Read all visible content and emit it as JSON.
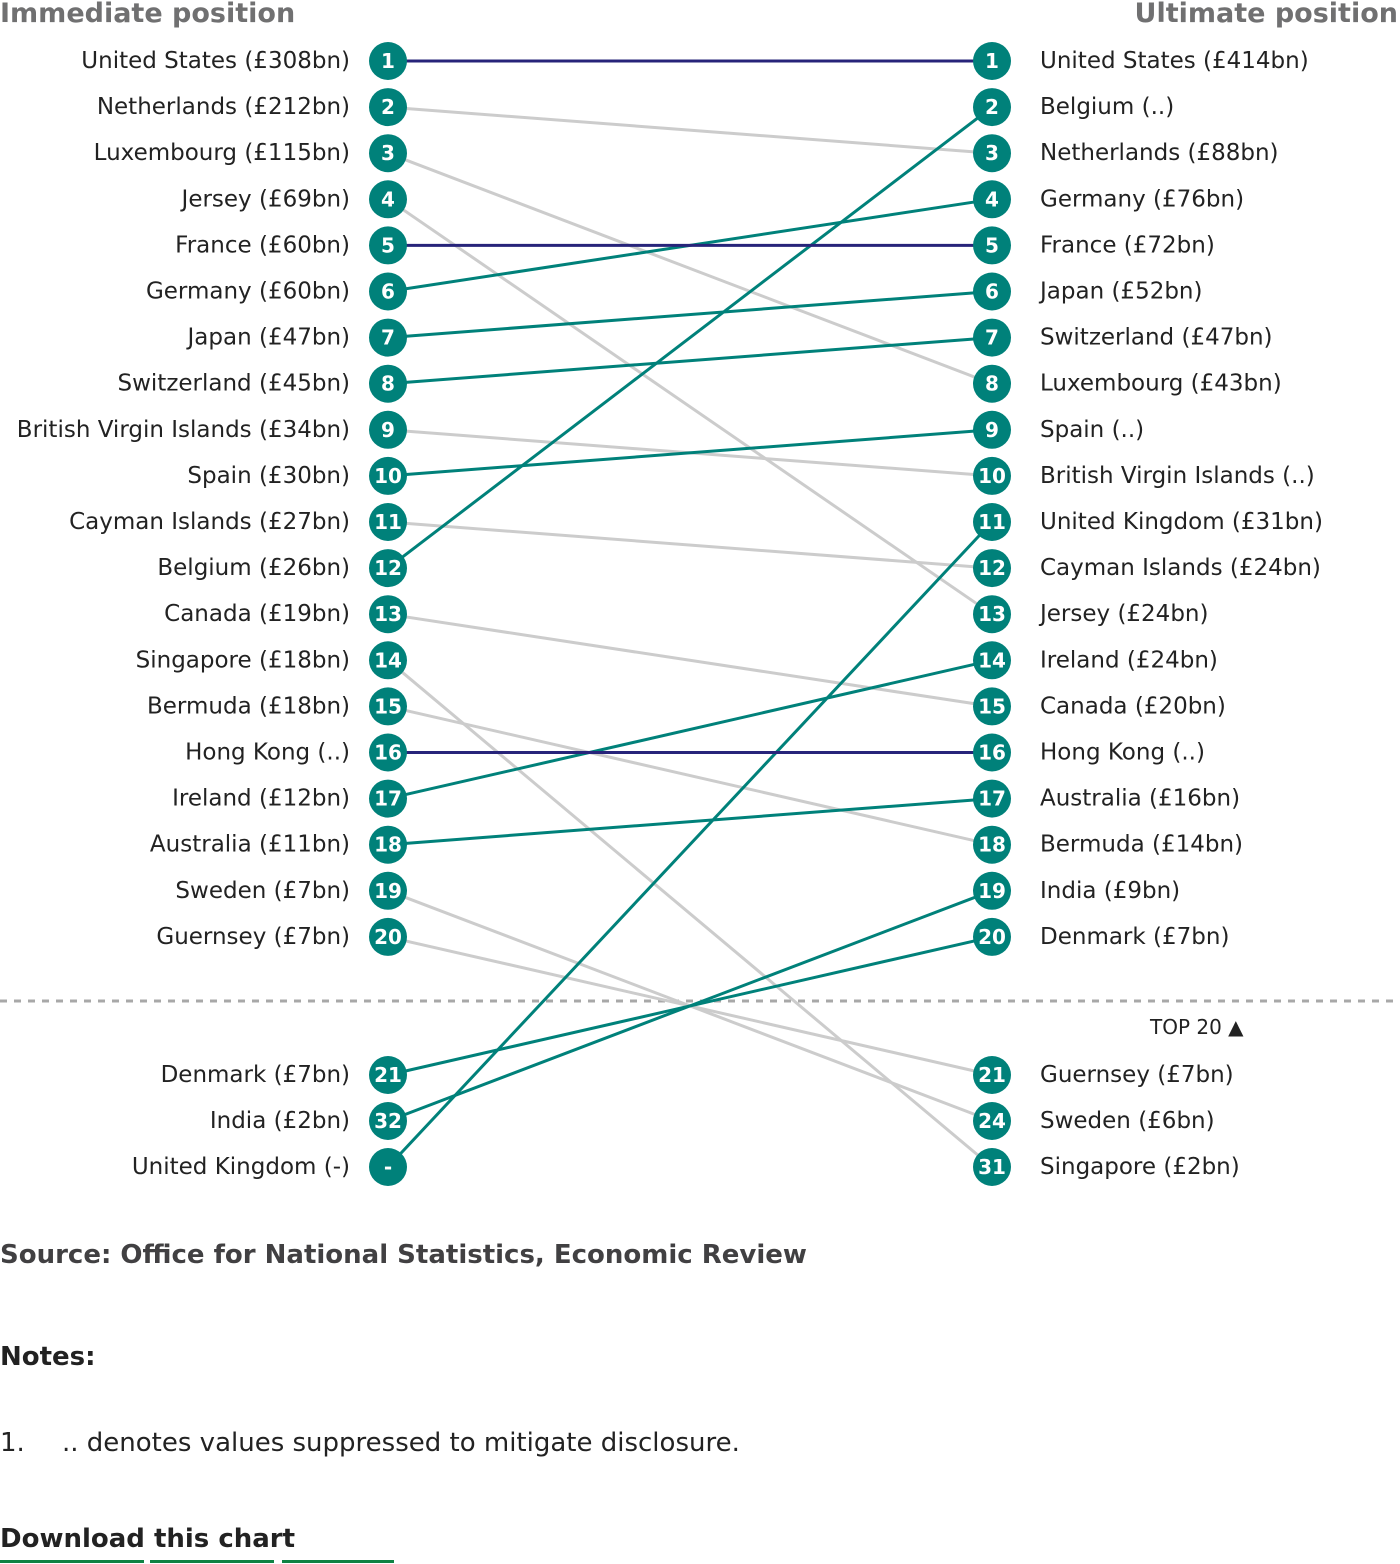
{
  "chart_data": {
    "type": "slope",
    "left_title": "Immediate position",
    "right_title": "Ultimate position",
    "top_marker_label": "TOP 20 ▲",
    "colors": {
      "unchanged": "#27247a",
      "rose": "#00817a",
      "fell": "#cccccc",
      "marker": "#00817a",
      "divider": "#a8a8a8"
    },
    "left": [
      {
        "rank": "1",
        "label": "United States (£308bn)"
      },
      {
        "rank": "2",
        "label": "Netherlands (£212bn)"
      },
      {
        "rank": "3",
        "label": "Luxembourg (£115bn)"
      },
      {
        "rank": "4",
        "label": "Jersey (£69bn)"
      },
      {
        "rank": "5",
        "label": "France (£60bn)"
      },
      {
        "rank": "6",
        "label": "Germany (£60bn)"
      },
      {
        "rank": "7",
        "label": "Japan (£47bn)"
      },
      {
        "rank": "8",
        "label": "Switzerland (£45bn)"
      },
      {
        "rank": "9",
        "label": "British Virgin Islands (£34bn)"
      },
      {
        "rank": "10",
        "label": "Spain (£30bn)"
      },
      {
        "rank": "11",
        "label": "Cayman Islands (£27bn)"
      },
      {
        "rank": "12",
        "label": "Belgium (£26bn)"
      },
      {
        "rank": "13",
        "label": "Canada (£19bn)"
      },
      {
        "rank": "14",
        "label": "Singapore (£18bn)"
      },
      {
        "rank": "15",
        "label": "Bermuda (£18bn)"
      },
      {
        "rank": "16",
        "label": "Hong Kong (..)"
      },
      {
        "rank": "17",
        "label": "Ireland (£12bn)"
      },
      {
        "rank": "18",
        "label": "Australia (£11bn)"
      },
      {
        "rank": "19",
        "label": "Sweden (£7bn)"
      },
      {
        "rank": "20",
        "label": "Guernsey (£7bn)"
      },
      {
        "rank": "21",
        "label": "Denmark (£7bn)"
      },
      {
        "rank": "32",
        "label": "India (£2bn)"
      },
      {
        "rank": "-",
        "label": "United Kingdom (-)"
      }
    ],
    "right": [
      {
        "rank": "1",
        "label": "United States (£414bn)"
      },
      {
        "rank": "2",
        "label": "Belgium (..)"
      },
      {
        "rank": "3",
        "label": "Netherlands (£88bn)"
      },
      {
        "rank": "4",
        "label": "Germany (£76bn)"
      },
      {
        "rank": "5",
        "label": "France (£72bn)"
      },
      {
        "rank": "6",
        "label": "Japan (£52bn)"
      },
      {
        "rank": "7",
        "label": "Switzerland (£47bn)"
      },
      {
        "rank": "8",
        "label": "Luxembourg (£43bn)"
      },
      {
        "rank": "9",
        "label": "Spain (..)"
      },
      {
        "rank": "10",
        "label": "British Virgin Islands (..)"
      },
      {
        "rank": "11",
        "label": "United Kingdom (£31bn)"
      },
      {
        "rank": "12",
        "label": "Cayman Islands (£24bn)"
      },
      {
        "rank": "13",
        "label": "Jersey (£24bn)"
      },
      {
        "rank": "14",
        "label": "Ireland (£24bn)"
      },
      {
        "rank": "15",
        "label": "Canada (£20bn)"
      },
      {
        "rank": "16",
        "label": "Hong Kong (..)"
      },
      {
        "rank": "17",
        "label": "Australia (£16bn)"
      },
      {
        "rank": "18",
        "label": "Bermuda (£14bn)"
      },
      {
        "rank": "19",
        "label": "India (£9bn)"
      },
      {
        "rank": "20",
        "label": "Denmark (£7bn)"
      },
      {
        "rank": "21",
        "label": "Guernsey (£7bn)"
      },
      {
        "rank": "24",
        "label": "Sweden (£6bn)"
      },
      {
        "rank": "31",
        "label": "Singapore (£2bn)"
      }
    ],
    "links": [
      {
        "from": 0,
        "to": 0,
        "trend": "unchanged"
      },
      {
        "from": 1,
        "to": 2,
        "trend": "fell"
      },
      {
        "from": 2,
        "to": 7,
        "trend": "fell"
      },
      {
        "from": 3,
        "to": 12,
        "trend": "fell"
      },
      {
        "from": 4,
        "to": 4,
        "trend": "unchanged"
      },
      {
        "from": 5,
        "to": 3,
        "trend": "rose"
      },
      {
        "from": 6,
        "to": 5,
        "trend": "rose"
      },
      {
        "from": 7,
        "to": 6,
        "trend": "rose"
      },
      {
        "from": 8,
        "to": 9,
        "trend": "fell"
      },
      {
        "from": 9,
        "to": 8,
        "trend": "rose"
      },
      {
        "from": 10,
        "to": 11,
        "trend": "fell"
      },
      {
        "from": 11,
        "to": 1,
        "trend": "rose"
      },
      {
        "from": 12,
        "to": 14,
        "trend": "fell"
      },
      {
        "from": 13,
        "to": 22,
        "trend": "fell"
      },
      {
        "from": 14,
        "to": 17,
        "trend": "fell"
      },
      {
        "from": 15,
        "to": 15,
        "trend": "unchanged"
      },
      {
        "from": 16,
        "to": 13,
        "trend": "rose"
      },
      {
        "from": 17,
        "to": 16,
        "trend": "rose"
      },
      {
        "from": 18,
        "to": 21,
        "trend": "fell"
      },
      {
        "from": 19,
        "to": 20,
        "trend": "fell"
      },
      {
        "from": 20,
        "to": 19,
        "trend": "rose"
      },
      {
        "from": 21,
        "to": 18,
        "trend": "rose"
      },
      {
        "from": 22,
        "to": 10,
        "trend": "rose"
      }
    ]
  },
  "source": "Source: Office for National Statistics, Economic Review",
  "notes_title": "Notes:",
  "notes": [
    {
      "num": "1.",
      "text": ".. denotes values suppressed to mitigate disclosure."
    }
  ],
  "download_label": "Download this chart"
}
